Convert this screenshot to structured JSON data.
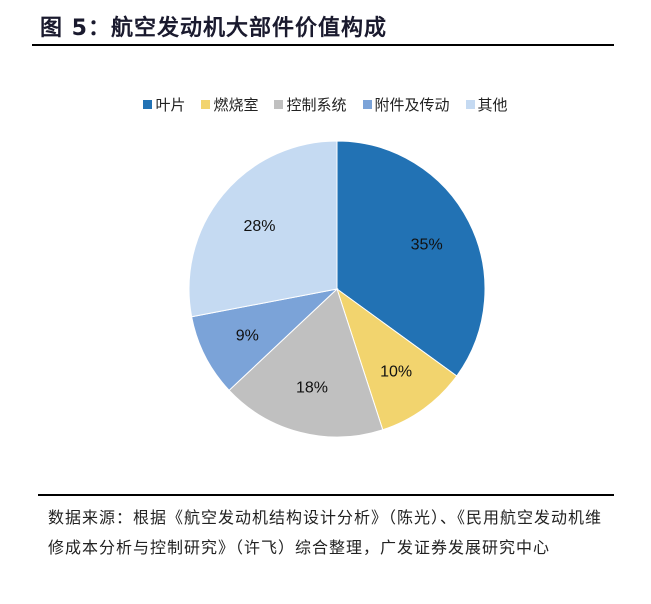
{
  "figure": {
    "title": "图 5：航空发动机大部件价值构成",
    "source": "数据来源：根据《航空发动机结构设计分析》（陈光）、《民用航空发动机维修成本分析与控制研究》（许飞）综合整理，广发证券发展研究中心"
  },
  "chart_data": {
    "type": "pie",
    "title": "航空发动机大部件价值构成",
    "categories": [
      "叶片",
      "燃烧室",
      "控制系统",
      "附件及传动",
      "其他"
    ],
    "values": [
      35,
      10,
      18,
      9,
      28
    ],
    "labels": [
      "35%",
      "10%",
      "18%",
      "9%",
      "28%"
    ],
    "colors": [
      "#2272b4",
      "#f2d46e",
      "#c0c0c0",
      "#7ba3d8",
      "#c5daf2"
    ],
    "legend_position": "top",
    "start_angle": "12 o'clock, clockwise"
  }
}
